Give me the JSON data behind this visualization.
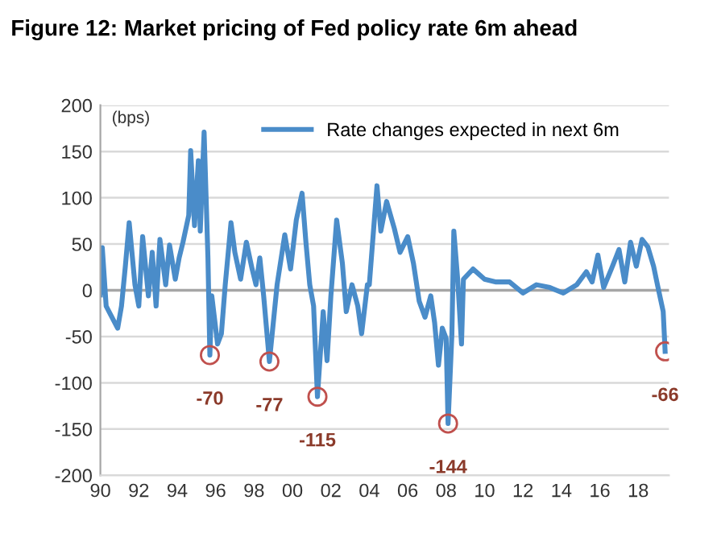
{
  "chart_data": {
    "type": "line",
    "title": "Figure 12: Market pricing of Fed policy rate 6m ahead",
    "ylabel": "(bps)",
    "x": [
      1990.0,
      1990.1,
      1990.3,
      1990.6,
      1990.9,
      1991.1,
      1991.3,
      1991.5,
      1991.8,
      1992.0,
      1992.2,
      1992.5,
      1992.7,
      1992.9,
      1993.1,
      1993.4,
      1993.6,
      1993.9,
      1994.1,
      1994.3,
      1994.6,
      1994.7,
      1994.9,
      1995.1,
      1995.2,
      1995.4,
      1995.6,
      1995.7,
      1995.8,
      1996.1,
      1996.3,
      1996.5,
      1996.8,
      1997.0,
      1997.3,
      1997.6,
      1997.9,
      1998.1,
      1998.3,
      1998.5,
      1998.8,
      1999.2,
      1999.6,
      1999.9,
      2000.2,
      2000.5,
      2000.7,
      2000.9,
      2001.1,
      2001.3,
      2001.6,
      2001.8,
      2002.0,
      2002.3,
      2002.6,
      2002.8,
      2003.1,
      2003.4,
      2003.6,
      2003.9,
      2004.0,
      2004.4,
      2004.6,
      2004.9,
      2005.3,
      2005.6,
      2006.0,
      2006.3,
      2006.6,
      2006.9,
      2007.2,
      2007.4,
      2007.6,
      2007.8,
      2008.0,
      2008.1,
      2008.3,
      2008.4,
      2008.6,
      2008.8,
      2008.9,
      2009.4,
      2010.0,
      2010.6,
      2011.3,
      2012.0,
      2012.7,
      2013.4,
      2014.1,
      2014.8,
      2015.3,
      2015.6,
      2015.9,
      2016.2,
      2016.6,
      2017.0,
      2017.3,
      2017.6,
      2017.9,
      2018.2,
      2018.5,
      2018.8,
      2019.0,
      2019.3,
      2019.4
    ],
    "series": [
      {
        "name": "Rate changes expected in next 6m",
        "color": "#4a8cc9",
        "values": [
          -5,
          46,
          -17,
          -29,
          -41,
          -17,
          26,
          73,
          6,
          -17,
          58,
          -6,
          41,
          -17,
          55,
          6,
          49,
          12,
          35,
          52,
          81,
          151,
          70,
          140,
          64,
          171,
          35,
          -70,
          -6,
          -58,
          -47,
          6,
          73,
          41,
          12,
          52,
          23,
          6,
          35,
          -6,
          -77,
          6,
          60,
          23,
          76,
          105,
          52,
          6,
          -17,
          -115,
          -23,
          -76,
          -6,
          76,
          29,
          -23,
          6,
          -17,
          -47,
          6,
          6,
          113,
          64,
          96,
          67,
          41,
          58,
          29,
          -12,
          -29,
          -6,
          -35,
          -81,
          -41,
          -52,
          -144,
          -47,
          64,
          12,
          -58,
          12,
          23,
          12,
          9,
          9,
          -3,
          6,
          3,
          -3,
          6,
          20,
          9,
          38,
          3,
          23,
          44,
          9,
          52,
          26,
          55,
          47,
          26,
          6,
          -23,
          -66
        ]
      }
    ],
    "annotations": [
      {
        "text": "-70",
        "x": 1995.7,
        "y": -70
      },
      {
        "text": "-77",
        "x": 1998.8,
        "y": -77
      },
      {
        "text": "-115",
        "x": 2001.3,
        "y": -115
      },
      {
        "text": "-144",
        "x": 2008.1,
        "y": -144
      },
      {
        "text": "-66",
        "x": 2019.4,
        "y": -66
      }
    ],
    "xlim": [
      1990,
      2019.6
    ],
    "xticks": [
      {
        "value": 1990,
        "label": "90"
      },
      {
        "value": 1992,
        "label": "92"
      },
      {
        "value": 1994,
        "label": "94"
      },
      {
        "value": 1996,
        "label": "96"
      },
      {
        "value": 1998,
        "label": "98"
      },
      {
        "value": 2000,
        "label": "00"
      },
      {
        "value": 2002,
        "label": "02"
      },
      {
        "value": 2004,
        "label": "04"
      },
      {
        "value": 2006,
        "label": "06"
      },
      {
        "value": 2008,
        "label": "08"
      },
      {
        "value": 2010,
        "label": "10"
      },
      {
        "value": 2012,
        "label": "12"
      },
      {
        "value": 2014,
        "label": "14"
      },
      {
        "value": 2016,
        "label": "16"
      },
      {
        "value": 2018,
        "label": "18"
      }
    ],
    "ylim": [
      -200,
      200
    ],
    "yticks": [
      -200,
      -150,
      -100,
      -50,
      0,
      50,
      100,
      150,
      200
    ],
    "grid": "y",
    "legend": "top",
    "marker": "none",
    "line_style": "solid"
  }
}
